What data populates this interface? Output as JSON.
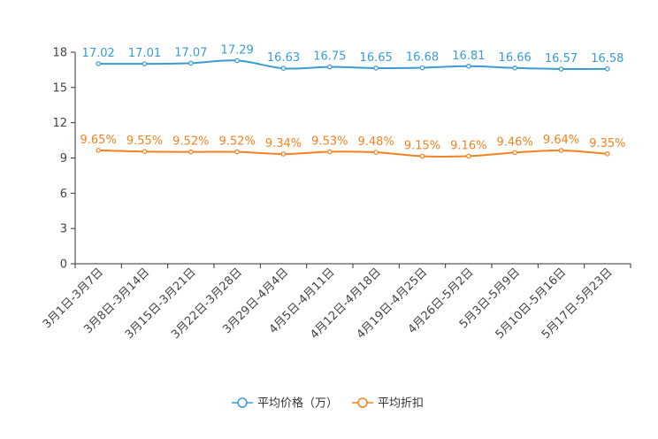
{
  "chart_data": {
    "type": "line",
    "title": "",
    "xlabel": "",
    "ylabel": "",
    "ylim": [
      0,
      18
    ],
    "yticks": [
      0,
      3,
      6,
      9,
      12,
      15,
      18
    ],
    "categories": [
      "3月1日-3月7日",
      "3月8日-3月14日",
      "3月15日-3月21日",
      "3月22日-3月28日",
      "3月29日-4月4日",
      "4月5日-4月11日",
      "4月12日-4月18日",
      "4月19日-4月25日",
      "4月26日-5月2日",
      "5月3日-5月9日",
      "5月10日-5月16日",
      "5月17日-5月23日"
    ],
    "series": [
      {
        "name": "平均价格（万）",
        "color": "#3a9bd5",
        "values": [
          17.02,
          17.01,
          17.07,
          17.29,
          16.63,
          16.75,
          16.65,
          16.68,
          16.81,
          16.66,
          16.57,
          16.58
        ],
        "labels": [
          "17.02",
          "17.01",
          "17.07",
          "17.29",
          "16.63",
          "16.75",
          "16.65",
          "16.68",
          "16.81",
          "16.66",
          "16.57",
          "16.58"
        ]
      },
      {
        "name": "平均折扣",
        "color": "#f5821f",
        "values": [
          9.65,
          9.55,
          9.52,
          9.52,
          9.34,
          9.53,
          9.48,
          9.15,
          9.16,
          9.46,
          9.64,
          9.35
        ],
        "labels": [
          "9.65%",
          "9.55%",
          "9.52%",
          "9.52%",
          "9.34%",
          "9.53%",
          "9.48%",
          "9.15%",
          "9.16%",
          "9.46%",
          "9.64%",
          "9.35%"
        ]
      }
    ],
    "legend_position": "bottom-center"
  }
}
